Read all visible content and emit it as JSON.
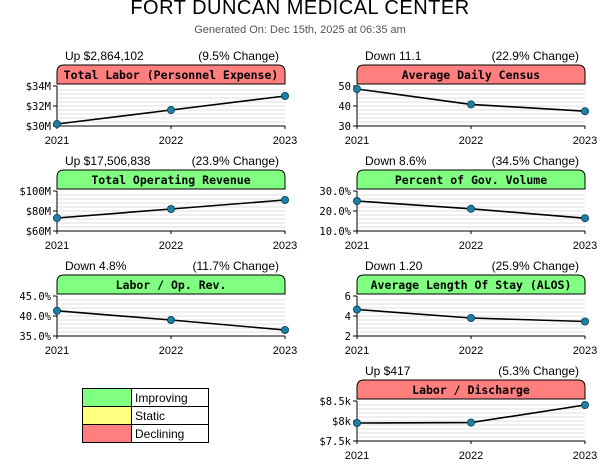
{
  "header": {
    "title": "FORT DUNCAN MEDICAL CENTER",
    "subtitle": "Generated On: Dec 15th, 2025 at 06:35 am"
  },
  "colors": {
    "improving": "#80ff80",
    "static": "#ffff80",
    "declining": "#ff7f7f",
    "line": "#000000",
    "marker": "#1d7fa3",
    "grid": "#c0c0c0"
  },
  "legend": [
    {
      "label": "Improving",
      "color": "#80ff80"
    },
    {
      "label": "Static",
      "color": "#ffff80"
    },
    {
      "label": "Declining",
      "color": "#ff7f7f"
    }
  ],
  "chart_data": [
    {
      "type": "line",
      "title": "Total Labor (Personnel Expense)",
      "status": "declining",
      "change_left": "Up $2,864,102",
      "change_right": "(9.5% Change)",
      "x": [
        "2021",
        "2022",
        "2023"
      ],
      "values": [
        30.2,
        31.6,
        33.0
      ],
      "ylim": [
        30,
        34
      ],
      "yticks": [
        30,
        32,
        34
      ],
      "ytick_labels": [
        "$30M",
        "$32M",
        "$34M"
      ],
      "grid": true
    },
    {
      "type": "line",
      "title": "Average Daily Census",
      "status": "declining",
      "change_left": "Down 11.1",
      "change_right": "(22.9% Change)",
      "x": [
        "2021",
        "2022",
        "2023"
      ],
      "values": [
        48.5,
        40.8,
        37.4
      ],
      "ylim": [
        30,
        50
      ],
      "yticks": [
        30,
        40,
        50
      ],
      "ytick_labels": [
        "30",
        "40",
        "50"
      ],
      "grid": true
    },
    {
      "type": "line",
      "title": "Total Operating Revenue",
      "status": "improving",
      "change_left": "Up $17,506,838",
      "change_right": "(23.9% Change)",
      "x": [
        "2021",
        "2022",
        "2023"
      ],
      "values": [
        73,
        82,
        91
      ],
      "ylim": [
        60,
        100
      ],
      "yticks": [
        60,
        80,
        100
      ],
      "ytick_labels": [
        "$60M",
        "$80M",
        "$100M"
      ],
      "grid": true
    },
    {
      "type": "line",
      "title": "Percent of Gov. Volume",
      "status": "improving",
      "change_left": "Down 8.6%",
      "change_right": "(34.5% Change)",
      "x": [
        "2021",
        "2022",
        "2023"
      ],
      "values": [
        25.0,
        21.1,
        16.4
      ],
      "ylim": [
        10,
        30
      ],
      "yticks": [
        10,
        20,
        30
      ],
      "ytick_labels": [
        "10.0%",
        "20.0%",
        "30.0%"
      ],
      "grid": true
    },
    {
      "type": "line",
      "title": "Labor / Op. Rev.",
      "status": "improving",
      "change_left": "Down 4.8%",
      "change_right": "(11.7% Change)",
      "x": [
        "2021",
        "2022",
        "2023"
      ],
      "values": [
        41.3,
        39.0,
        36.5
      ],
      "ylim": [
        35,
        45
      ],
      "yticks": [
        35,
        40,
        45
      ],
      "ytick_labels": [
        "35.0%",
        "40.0%",
        "45.0%"
      ],
      "grid": true
    },
    {
      "type": "line",
      "title": "Average Length Of Stay (ALOS)",
      "status": "improving",
      "change_left": "Down 1.20",
      "change_right": "(25.9% Change)",
      "x": [
        "2021",
        "2022",
        "2023"
      ],
      "values": [
        4.65,
        3.8,
        3.45
      ],
      "ylim": [
        2,
        6
      ],
      "yticks": [
        2,
        4,
        6
      ],
      "ytick_labels": [
        "2",
        "4",
        "6"
      ],
      "grid": true
    },
    {
      "type": "line",
      "title": "Labor / Discharge",
      "status": "declining",
      "change_left": "Up $417",
      "change_right": "(5.3% Change)",
      "x": [
        "2021",
        "2022",
        "2023"
      ],
      "values": [
        7.95,
        7.96,
        8.4
      ],
      "ylim": [
        7.5,
        8.5
      ],
      "yticks": [
        7.5,
        8.0,
        8.5
      ],
      "ytick_labels": [
        "$7.5k",
        "$8k",
        "$8.5k"
      ],
      "grid": true
    }
  ]
}
